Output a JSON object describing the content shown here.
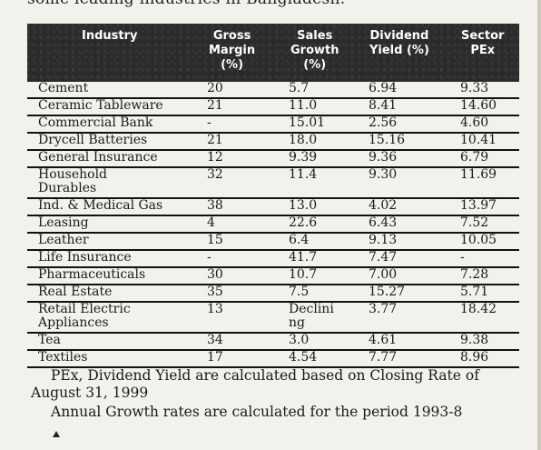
{
  "intro_text": "some leading industries in Bangladesh.",
  "table": {
    "headers": {
      "industry": "Industry",
      "gross_margin": "Gross\nMargin\n(%)",
      "sales_growth": "Sales\nGrowth\n(%)",
      "dividend_yield": "Dividend\nYield (%)",
      "sector_pex": "Sector\nPEx"
    },
    "rows": [
      {
        "industry": "Cement",
        "gross_margin": "20",
        "sales_growth": "5.7",
        "dividend_yield": "6.94",
        "sector_pex": "9.33"
      },
      {
        "industry": "Ceramic Tableware",
        "gross_margin": "21",
        "sales_growth": "11.0",
        "dividend_yield": "8.41",
        "sector_pex": "14.60"
      },
      {
        "industry": "Commercial Bank",
        "gross_margin": "-",
        "sales_growth": "15.01",
        "dividend_yield": "2.56",
        "sector_pex": "4.60"
      },
      {
        "industry": "Drycell Batteries",
        "gross_margin": "21",
        "sales_growth": "18.0",
        "dividend_yield": "15.16",
        "sector_pex": "10.41"
      },
      {
        "industry": "General Insurance",
        "gross_margin": "12",
        "sales_growth": "9.39",
        "dividend_yield": "9.36",
        "sector_pex": "6.79"
      },
      {
        "industry": "Household\nDurables",
        "gross_margin": "32",
        "sales_growth": "11.4",
        "dividend_yield": "9.30",
        "sector_pex": "11.69"
      },
      {
        "industry": "Ind. & Medical Gas",
        "gross_margin": "38",
        "sales_growth": "13.0",
        "dividend_yield": "4.02",
        "sector_pex": "13.97"
      },
      {
        "industry": "Leasing",
        "gross_margin": "4",
        "sales_growth": "22.6",
        "dividend_yield": "6.43",
        "sector_pex": "7.52"
      },
      {
        "industry": "Leather",
        "gross_margin": "15",
        "sales_growth": "6.4",
        "dividend_yield": "9.13",
        "sector_pex": "10.05"
      },
      {
        "industry": "Life Insurance",
        "gross_margin": "-",
        "sales_growth": "41.7",
        "dividend_yield": "7.47",
        "sector_pex": "-"
      },
      {
        "industry": "Pharmaceuticals",
        "gross_margin": "30",
        "sales_growth": "10.7",
        "dividend_yield": "7.00",
        "sector_pex": "7.28"
      },
      {
        "industry": "Real Estate",
        "gross_margin": "35",
        "sales_growth": "7.5",
        "dividend_yield": "15.27",
        "sector_pex": "5.71"
      },
      {
        "industry": "Retail Electric\nAppliances",
        "gross_margin": "13",
        "sales_growth": "Declini\nng",
        "dividend_yield": "3.77",
        "sector_pex": "18.42"
      },
      {
        "industry": "Tea",
        "gross_margin": "34",
        "sales_growth": "3.0",
        "dividend_yield": "4.61",
        "sector_pex": "9.38"
      },
      {
        "industry": "Textiles",
        "gross_margin": "17",
        "sales_growth": "4.54",
        "dividend_yield": "7.77",
        "sector_pex": "8.96"
      }
    ]
  },
  "notes": {
    "note1": "PEx, Dividend Yield are calculated based on Closing Rate of August 31, 1999",
    "note2": "Annual Growth rates are calculated for the period 1993-8"
  }
}
